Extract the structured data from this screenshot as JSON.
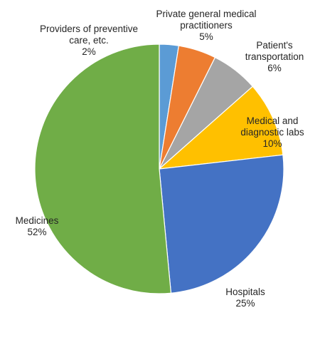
{
  "chart_data": {
    "type": "pie",
    "title": "",
    "start_angle_deg": 0,
    "direction": "clockwise",
    "slices": [
      {
        "label": [
          "Providers of preventive",
          "care, etc."
        ],
        "value_label": "2%",
        "value": 2.5,
        "color": "#5b9bd5"
      },
      {
        "label": [
          "Private general medical",
          "practitioners"
        ],
        "value_label": "5%",
        "value": 4.9,
        "color": "#ed7d31"
      },
      {
        "label": [
          "Patient's",
          "transportation"
        ],
        "value_label": "6%",
        "value": 6.1,
        "color": "#a5a5a5"
      },
      {
        "label": [
          "Medical and",
          "diagnostic labs"
        ],
        "value_label": "10%",
        "value": 9.7,
        "color": "#ffc000"
      },
      {
        "label": [
          "Hospitals"
        ],
        "value_label": "25%",
        "value": 25.3,
        "color": "#4472c4"
      },
      {
        "label": [
          "Medicines"
        ],
        "value_label": "52%",
        "value": 51.5,
        "color": "#70ad47"
      }
    ]
  }
}
